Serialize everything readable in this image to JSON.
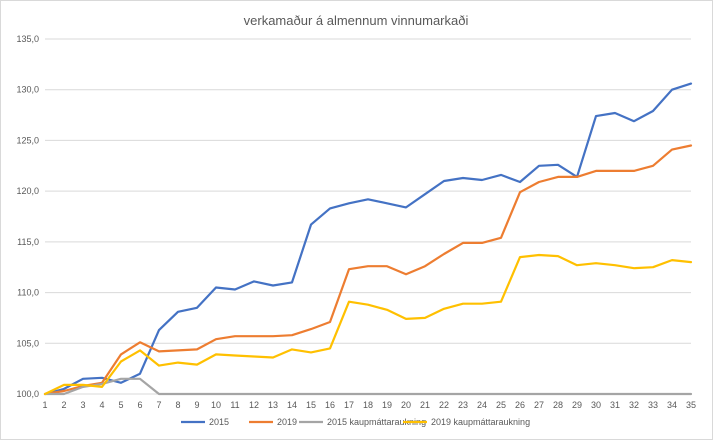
{
  "chart_data": {
    "type": "line",
    "title": "verkamaður á almennum vinnumarkaði",
    "xlabel": "",
    "ylabel": "",
    "categories": [
      "1",
      "2",
      "3",
      "4",
      "5",
      "6",
      "7",
      "8",
      "9",
      "10",
      "11",
      "12",
      "13",
      "14",
      "15",
      "16",
      "17",
      "18",
      "19",
      "20",
      "21",
      "22",
      "23",
      "24",
      "25",
      "26",
      "27",
      "28",
      "29",
      "30",
      "31",
      "32",
      "33",
      "34",
      "35"
    ],
    "ylim": [
      100,
      135
    ],
    "yticks": [
      "100,0",
      "105,0",
      "110,0",
      "115,0",
      "120,0",
      "125,0",
      "130,0",
      "135,0"
    ],
    "grid": true,
    "legend_position": "bottom",
    "series": [
      {
        "name": "2015",
        "color": "#4472c4",
        "values": [
          100.0,
          100.5,
          101.5,
          101.6,
          101.1,
          102.0,
          106.3,
          108.1,
          108.5,
          110.5,
          110.3,
          111.1,
          110.7,
          111.0,
          116.7,
          118.3,
          118.8,
          119.2,
          118.8,
          118.4,
          119.7,
          121.0,
          121.3,
          121.1,
          121.6,
          120.9,
          122.5,
          122.6,
          121.4,
          127.4,
          127.7,
          126.9,
          127.9,
          130.0,
          130.6
        ]
      },
      {
        "name": "2019",
        "color": "#ed7d31",
        "values": [
          100.0,
          100.3,
          100.8,
          101.1,
          103.9,
          105.1,
          104.2,
          104.3,
          104.4,
          105.4,
          105.7,
          105.7,
          105.7,
          105.8,
          106.4,
          107.1,
          112.3,
          112.6,
          112.6,
          111.8,
          112.6,
          113.8,
          114.9,
          114.9,
          115.4,
          119.9,
          120.9,
          121.4,
          121.4,
          122.0,
          122.0,
          122.0,
          122.5,
          124.1,
          124.5
        ]
      },
      {
        "name": "2015 kaupmáttaraukning",
        "color": "#a5a5a5",
        "values": [
          100.0,
          100.0,
          100.7,
          101.0,
          101.5,
          101.5,
          100.0,
          100.0,
          100.0,
          100.0,
          100.0,
          100.0,
          100.0,
          100.0,
          100.0,
          100.0,
          100.0,
          100.0,
          100.0,
          100.0,
          100.0,
          100.0,
          100.0,
          100.0,
          100.0,
          100.0,
          100.0,
          100.0,
          100.0,
          100.0,
          100.0,
          100.0,
          100.0,
          100.0,
          100.0
        ]
      },
      {
        "name": "2019 kaupmáttaraukning",
        "color": "#ffc000",
        "values": [
          100.0,
          100.9,
          100.9,
          100.7,
          103.2,
          104.3,
          102.8,
          103.1,
          102.9,
          103.9,
          103.8,
          103.7,
          103.6,
          104.4,
          104.1,
          104.5,
          109.1,
          108.8,
          108.3,
          107.4,
          107.5,
          108.4,
          108.9,
          108.9,
          109.1,
          113.5,
          113.7,
          113.6,
          112.7,
          112.9,
          112.7,
          112.4,
          112.5,
          113.2,
          113.0
        ]
      }
    ]
  }
}
